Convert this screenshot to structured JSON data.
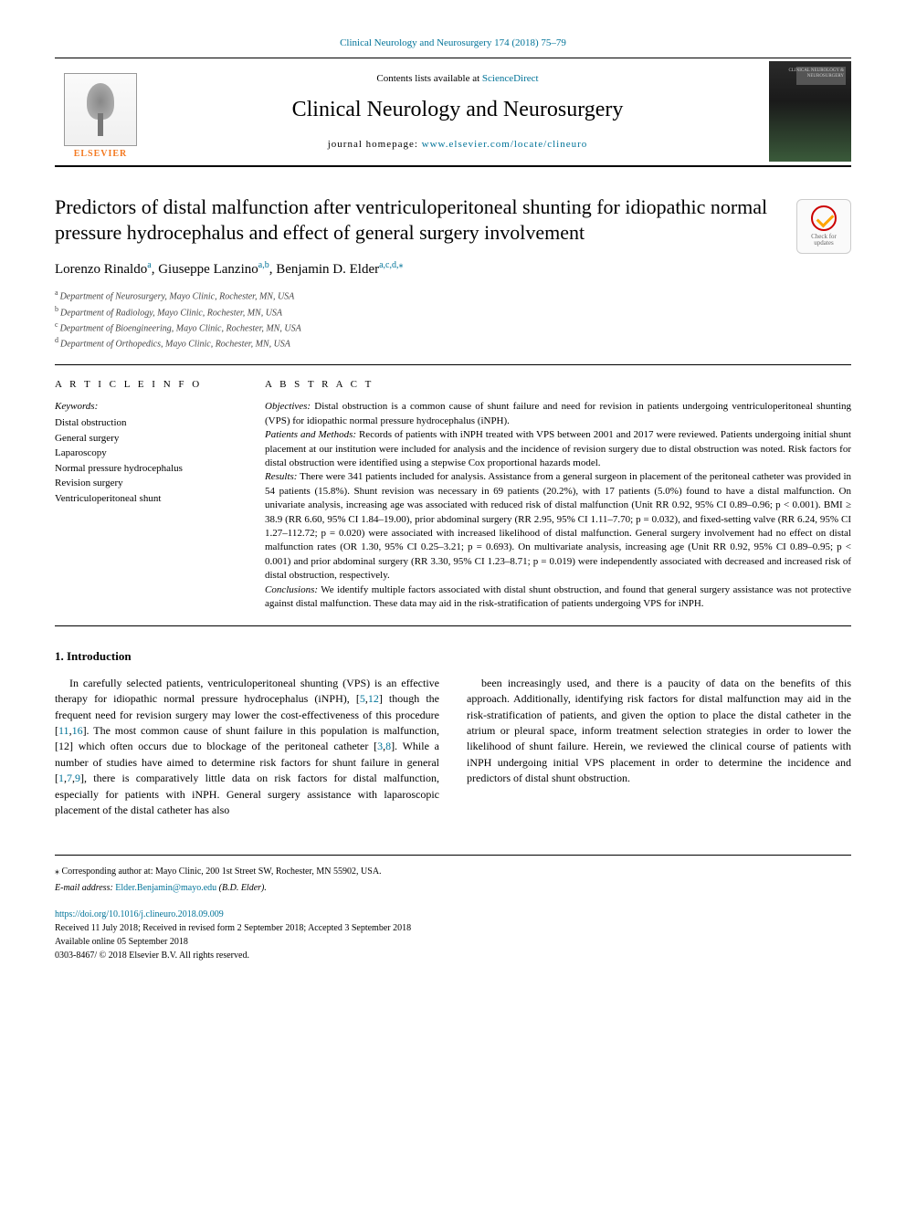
{
  "header": {
    "citation": "Clinical Neurology and Neurosurgery 174 (2018) 75–79",
    "contents_prefix": "Contents lists available at ",
    "contents_link": "ScienceDirect",
    "journal_title": "Clinical Neurology and Neurosurgery",
    "homepage_prefix": "journal homepage: ",
    "homepage_url": "www.elsevier.com/locate/clineuro",
    "elsevier_label": "ELSEVIER",
    "cover_label": "CLINICAL NEUROLOGY & NEUROSURGERY"
  },
  "crossmark": {
    "line1": "Check for",
    "line2": "updates"
  },
  "article": {
    "title": "Predictors of distal malfunction after ventriculoperitoneal shunting for idiopathic normal pressure hydrocephalus and effect of general surgery involvement",
    "authors_html": "Lorenzo Rinaldo<span class='sup'>a</span>, Giuseppe Lanzino<span class='sup'>a,b</span>, Benjamin D. Elder<span class='sup'>a,c,d,</span><span class='sup'>⁎</span>",
    "affiliations": [
      {
        "sup": "a",
        "text": "Department of Neurosurgery, Mayo Clinic, Rochester, MN, USA"
      },
      {
        "sup": "b",
        "text": "Department of Radiology, Mayo Clinic, Rochester, MN, USA"
      },
      {
        "sup": "c",
        "text": "Department of Bioengineering, Mayo Clinic, Rochester, MN, USA"
      },
      {
        "sup": "d",
        "text": "Department of Orthopedics, Mayo Clinic, Rochester, MN, USA"
      }
    ]
  },
  "article_info": {
    "heading": "A R T I C L E  I N F O",
    "keywords_label": "Keywords:",
    "keywords": [
      "Distal obstruction",
      "General surgery",
      "Laparoscopy",
      "Normal pressure hydrocephalus",
      "Revision surgery",
      "Ventriculoperitoneal shunt"
    ]
  },
  "abstract": {
    "heading": "A B S T R A C T",
    "sections": [
      {
        "label": "Objectives:",
        "text": " Distal obstruction is a common cause of shunt failure and need for revision in patients undergoing ventriculoperitoneal shunting (VPS) for idiopathic normal pressure hydrocephalus (iNPH)."
      },
      {
        "label": "Patients and Methods:",
        "text": " Records of patients with iNPH treated with VPS between 2001 and 2017 were reviewed. Patients undergoing initial shunt placement at our institution were included for analysis and the incidence of revision surgery due to distal obstruction was noted. Risk factors for distal obstruction were identified using a stepwise Cox proportional hazards model."
      },
      {
        "label": "Results:",
        "text": " There were 341 patients included for analysis. Assistance from a general surgeon in placement of the peritoneal catheter was provided in 54 patients (15.8%). Shunt revision was necessary in 69 patients (20.2%), with 17 patients (5.0%) found to have a distal malfunction. On univariate analysis, increasing age was associated with reduced risk of distal malfunction (Unit RR 0.92, 95% CI 0.89–0.96; p < 0.001). BMI ≥ 38.9 (RR 6.60, 95% CI 1.84–19.00), prior abdominal surgery (RR 2.95, 95% CI 1.11–7.70; p = 0.032), and fixed-setting valve (RR 6.24, 95% CI 1.27–112.72; p = 0.020) were associated with increased likelihood of distal malfunction. General surgery involvement had no effect on distal malfunction rates (OR 1.30, 95% CI 0.25–3.21; p = 0.693). On multivariate analysis, increasing age (Unit RR 0.92, 95% CI 0.89–0.95; p < 0.001) and prior abdominal surgery (RR 3.30, 95% CI 1.23–8.71; p = 0.019) were independently associated with decreased and increased risk of distal obstruction, respectively."
      },
      {
        "label": "Conclusions:",
        "text": " We identify multiple factors associated with distal shunt obstruction, and found that general surgery assistance was not protective against distal malfunction. These data may aid in the risk-stratification of patients undergoing VPS for iNPH."
      }
    ]
  },
  "introduction": {
    "heading": "1. Introduction",
    "col1": "In carefully selected patients, ventriculoperitoneal shunting (VPS) is an effective therapy for idiopathic normal pressure hydrocephalus (iNPH), [5,12] though the frequent need for revision surgery may lower the cost-effectiveness of this procedure [11,16]. The most common cause of shunt failure in this population is malfunction, [12] which often occurs due to blockage of the peritoneal catheter [3,8]. While a number of studies have aimed to determine risk factors for shunt failure in general [1,7,9], there is comparatively little data on risk factors for distal malfunction, especially for patients with iNPH. General surgery assistance with laparoscopic placement of the distal catheter has also",
    "col2": "been increasingly used, and there is a paucity of data on the benefits of this approach. Additionally, identifying risk factors for distal malfunction may aid in the risk-stratification of patients, and given the option to place the distal catheter in the atrium or pleural space, inform treatment selection strategies in order to lower the likelihood of shunt failure. Herein, we reviewed the clinical course of patients with iNPH undergoing initial VPS placement in order to determine the incidence and predictors of distal shunt obstruction.",
    "cite_links_col1": [
      "5",
      "12",
      "11",
      "16",
      "12",
      "3",
      "8",
      "1",
      "7",
      "9"
    ]
  },
  "footer": {
    "corresponding": "⁎ Corresponding author at: Mayo Clinic, 200 1st Street SW, Rochester, MN 55902, USA.",
    "email_label": "E-mail address: ",
    "email": "Elder.Benjamin@mayo.edu",
    "email_suffix": " (B.D. Elder).",
    "doi": "https://doi.org/10.1016/j.clineuro.2018.09.009",
    "received": "Received 11 July 2018; Received in revised form 2 September 2018; Accepted 3 September 2018",
    "online": "Available online 05 September 2018",
    "copyright": "0303-8467/ © 2018 Elsevier B.V. All rights reserved."
  },
  "colors": {
    "link": "#007398",
    "elsevier_orange": "#f47920"
  }
}
